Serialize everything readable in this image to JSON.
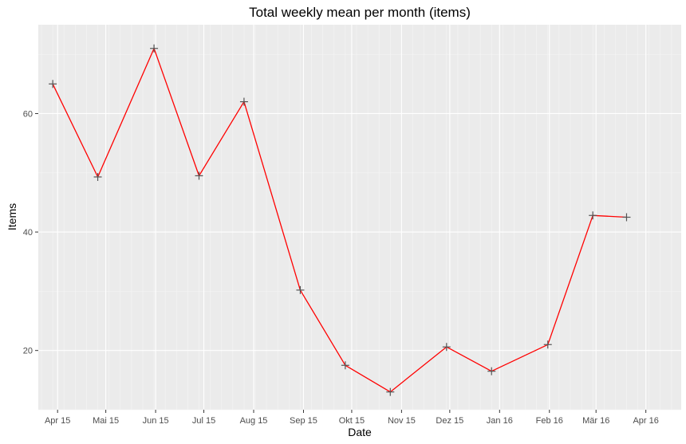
{
  "chart_data": {
    "type": "line",
    "title": "Total weekly mean per month (items)",
    "xlabel": "Date",
    "ylabel": "Items",
    "x_ticks": [
      "Apr 15",
      "Mai 15",
      "Jun 15",
      "Jul 15",
      "Aug 15",
      "Sep 15",
      "Okt 15",
      "Nov 15",
      "Dez 15",
      "Jan 16",
      "Feb 16",
      "Mär 16",
      "Apr 16"
    ],
    "y_ticks": [
      20,
      40,
      60
    ],
    "ylim": [
      10,
      75
    ],
    "xlim": [
      "2015-03-20",
      "2016-04-23"
    ],
    "grid": true,
    "series": [
      {
        "color": "#ff0000",
        "marker": "plus",
        "marker_color": "#555555",
        "points": [
          {
            "x": "2015-03-29",
            "y": 65
          },
          {
            "x": "2015-04-26",
            "y": 49.3
          },
          {
            "x": "2015-05-31",
            "y": 71
          },
          {
            "x": "2015-06-28",
            "y": 49.5
          },
          {
            "x": "2015-07-26",
            "y": 62
          },
          {
            "x": "2015-08-30",
            "y": 30.2
          },
          {
            "x": "2015-09-27",
            "y": 17.5
          },
          {
            "x": "2015-10-25",
            "y": 13
          },
          {
            "x": "2015-11-29",
            "y": 20.6
          },
          {
            "x": "2015-12-27",
            "y": 16.5
          },
          {
            "x": "2016-01-31",
            "y": 21
          },
          {
            "x": "2016-02-28",
            "y": 42.8
          },
          {
            "x": "2016-03-20",
            "y": 42.5
          }
        ]
      }
    ]
  }
}
